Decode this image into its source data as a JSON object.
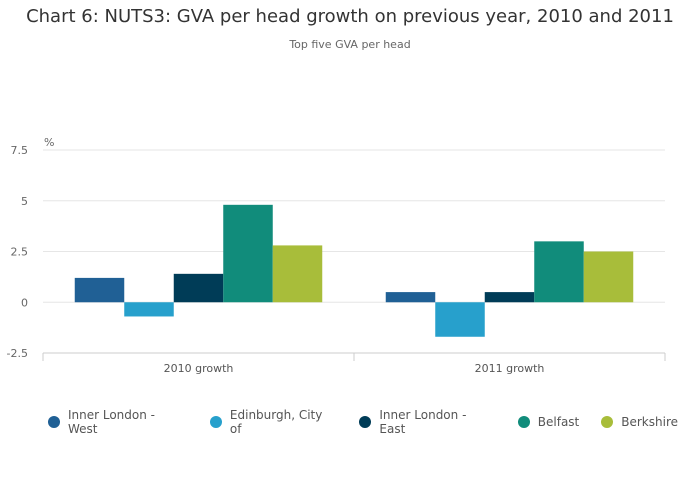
{
  "title": "Chart 6: NUTS3: GVA per head growth on previous year, 2010 and 2011",
  "subtitle": "Top five GVA per head",
  "chart_data": {
    "type": "bar",
    "title": "Chart 6: NUTS3: GVA per head growth on previous year, 2010 and 2011",
    "subtitle": "Top five GVA per head",
    "ylabel": "%",
    "xlabel": "",
    "categories": [
      "2010 growth",
      "2011 growth"
    ],
    "ylim": [
      -2.5,
      7.5
    ],
    "yticks": [
      7.5,
      5,
      2.5,
      0,
      -2.5
    ],
    "ytick_labels": [
      "7.5",
      "5",
      "2.5",
      "0",
      "-2.5"
    ],
    "grid": true,
    "legend_position": "bottom",
    "series": [
      {
        "name": "Inner London - West",
        "color": "#206095",
        "values": [
          1.2,
          0.5
        ]
      },
      {
        "name": "Edinburgh, City of",
        "color": "#27a0cc",
        "values": [
          -0.7,
          -1.7
        ]
      },
      {
        "name": "Inner London - East",
        "color": "#003c57",
        "values": [
          1.4,
          0.5
        ]
      },
      {
        "name": "Belfast",
        "color": "#118c7b",
        "values": [
          4.8,
          3.0
        ]
      },
      {
        "name": "Berkshire",
        "color": "#a8bd3a",
        "values": [
          2.8,
          2.5
        ]
      }
    ]
  }
}
